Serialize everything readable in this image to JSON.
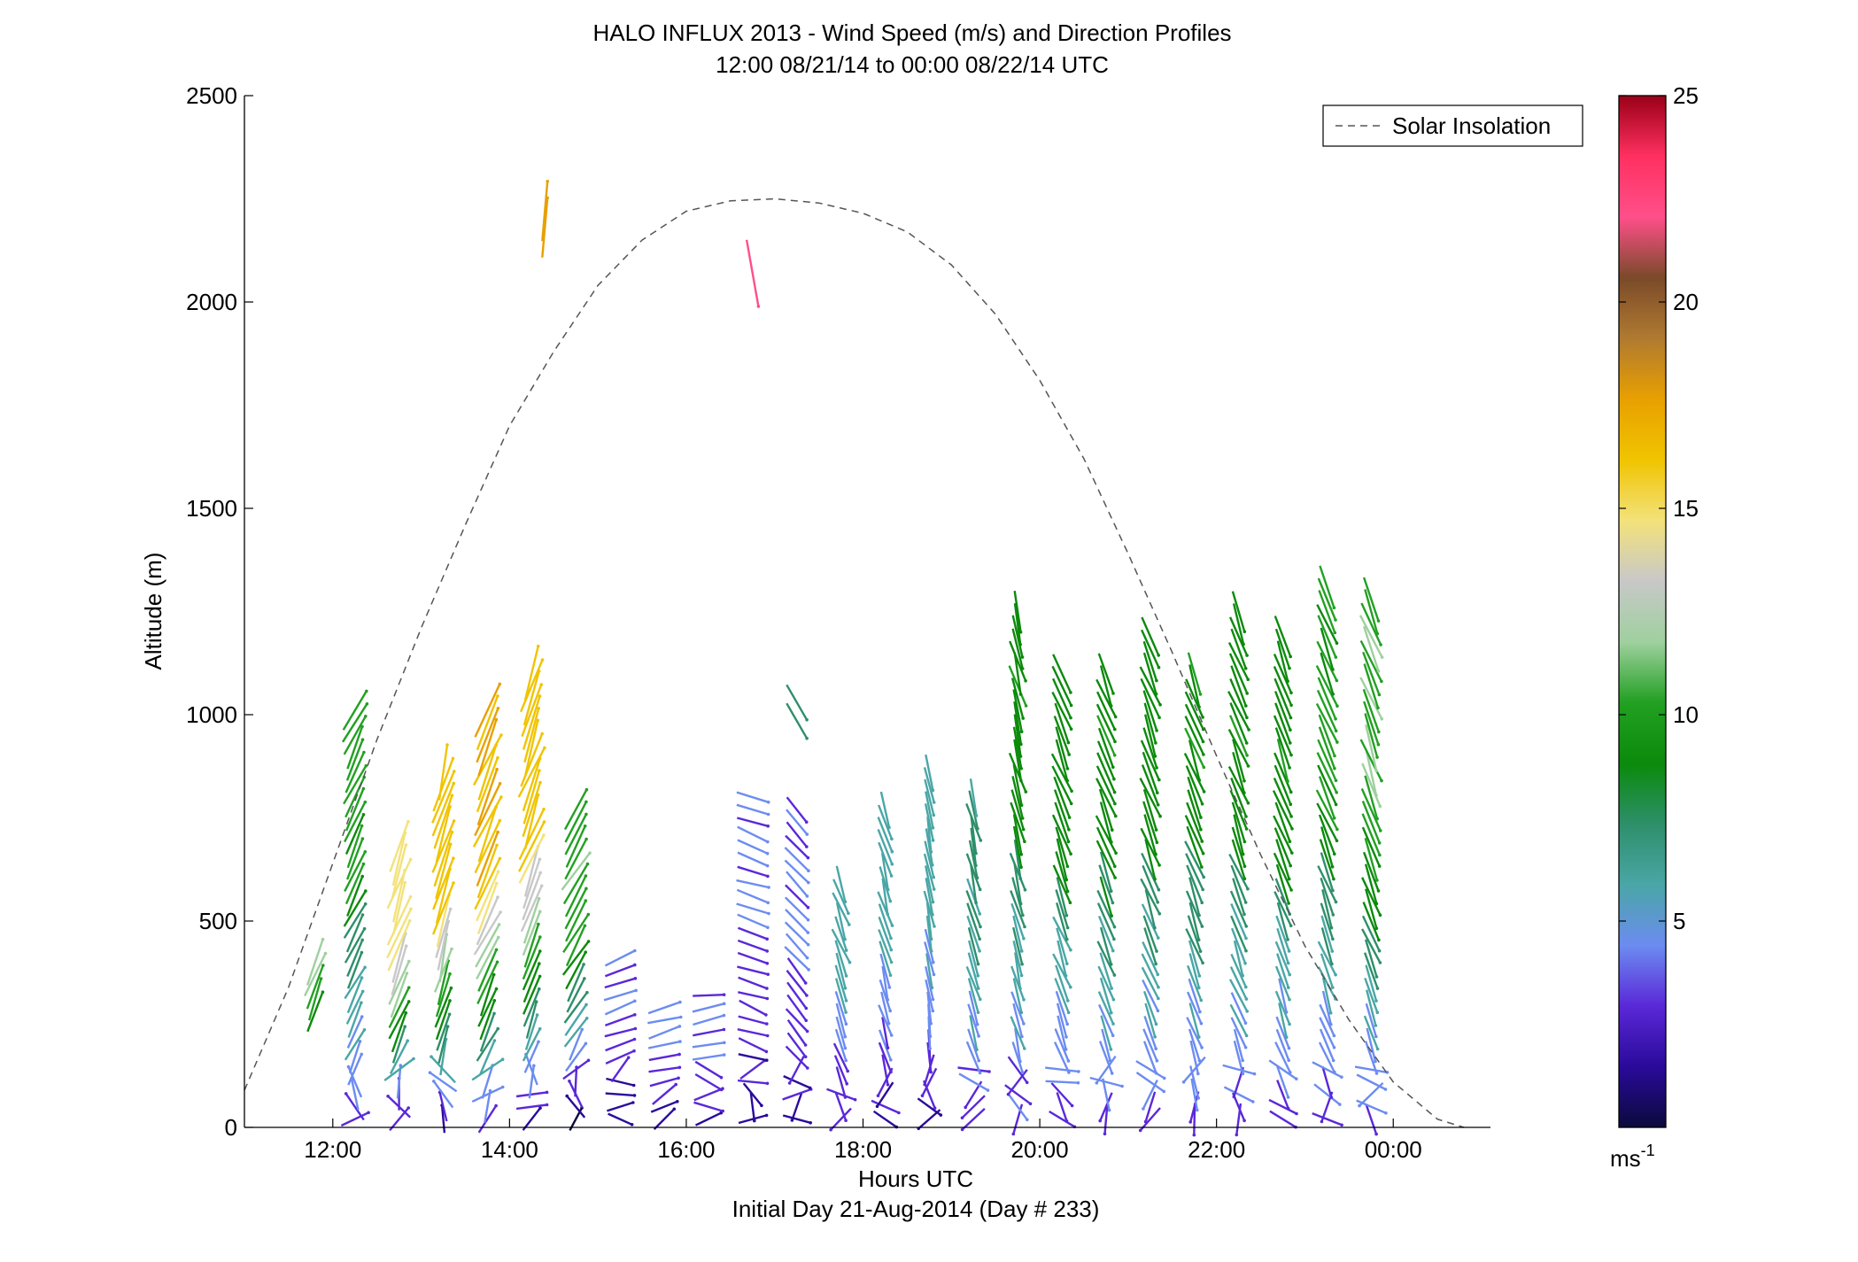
{
  "chart_data": {
    "type": "scatter",
    "title": "HALO INFLUX 2013 - Wind Speed (m/s) and Direction Profiles",
    "subtitle": "12:00 08/21/14 to 00:00 08/22/14  UTC",
    "xlabel": "Hours UTC",
    "footer": "Initial Day 21-Aug-2014 (Day # 233)",
    "ylabel": "Altitude (m)",
    "xlim": [
      11,
      25.1
    ],
    "ylim": [
      0,
      2500
    ],
    "x_ticks": [
      {
        "value": 12,
        "label": "12:00"
      },
      {
        "value": 14,
        "label": "14:00"
      },
      {
        "value": 16,
        "label": "16:00"
      },
      {
        "value": 18,
        "label": "18:00"
      },
      {
        "value": 20,
        "label": "20:00"
      },
      {
        "value": 22,
        "label": "22:00"
      },
      {
        "value": 24,
        "label": "00:00"
      }
    ],
    "y_ticks": [
      0,
      500,
      1000,
      1500,
      2000,
      2500
    ],
    "legend": {
      "position": "top-right",
      "entries": [
        {
          "label": "Solar Insolation",
          "style": "dashed",
          "color": "#555555"
        }
      ]
    },
    "colorbar": {
      "min": 0,
      "max": 25,
      "ticks": [
        5,
        10,
        15,
        20,
        25
      ],
      "unit_label": "ms",
      "unit_exponent": "-1",
      "colors": [
        "#0a0a3c",
        "#2a0a9a",
        "#5a28d8",
        "#6c8cf0",
        "#4aa6a6",
        "#2d8f6a",
        "#0b8a0b",
        "#22a022",
        "#9fd09f",
        "#c8c8c8",
        "#f3e27a",
        "#f0c400",
        "#e8a000",
        "#b07a30",
        "#7a4a2a",
        "#ff4f8a",
        "#ff3060",
        "#9a0018"
      ]
    },
    "solar_insolation": {
      "x": [
        11.0,
        11.5,
        12.0,
        12.5,
        13.0,
        13.5,
        14.0,
        14.5,
        15.0,
        15.5,
        16.0,
        16.5,
        17.0,
        17.5,
        18.0,
        18.5,
        19.0,
        19.5,
        20.0,
        20.5,
        21.0,
        21.5,
        22.0,
        22.5,
        23.0,
        23.5,
        24.0,
        24.5,
        24.8
      ],
      "y": [
        90,
        340,
        640,
        940,
        1210,
        1460,
        1700,
        1880,
        2040,
        2150,
        2220,
        2245,
        2250,
        2240,
        2215,
        2170,
        2090,
        1970,
        1810,
        1620,
        1390,
        1150,
        900,
        660,
        440,
        260,
        110,
        20,
        0
      ]
    },
    "wind_profiles": {
      "columns": [
        {
          "time": 11.8,
          "top": 420,
          "bottom": 280,
          "speed_low": 9,
          "speed_high": 12,
          "dir": 20
        },
        {
          "time": 12.25,
          "top": 1010,
          "bottom": 20,
          "speed_low": 3,
          "speed_high": 10,
          "dir": 25
        },
        {
          "time": 12.75,
          "top": 700,
          "bottom": 20,
          "speed_low": 2,
          "speed_high": 15,
          "dir": 20
        },
        {
          "time": 13.25,
          "top": 860,
          "bottom": 20,
          "speed_low": 2,
          "speed_high": 16,
          "dir": 15
        },
        {
          "time": 13.75,
          "top": 1020,
          "bottom": 20,
          "speed_low": 3,
          "speed_high": 17,
          "dir": 25
        },
        {
          "time": 14.25,
          "top": 1110,
          "bottom": 20,
          "speed_low": 2,
          "speed_high": 16,
          "dir": 20
        },
        {
          "time": 14.75,
          "top": 790,
          "bottom": 20,
          "speed_low": 1,
          "speed_high": 11,
          "dir": 30
        },
        {
          "time": 15.25,
          "top": 420,
          "bottom": 20,
          "speed_low": 1,
          "speed_high": 4,
          "dir": 70
        },
        {
          "time": 15.75,
          "top": 300,
          "bottom": 20,
          "speed_low": 2,
          "speed_high": 4,
          "dir": 75
        },
        {
          "time": 16.25,
          "top": 320,
          "bottom": 20,
          "speed_low": 2,
          "speed_high": 4,
          "dir": 80
        },
        {
          "time": 16.75,
          "top": 820,
          "bottom": 20,
          "speed_low": 2,
          "speed_high": 4,
          "dir": 110
        },
        {
          "time": 17.25,
          "top": 780,
          "bottom": 20,
          "speed_low": 2,
          "speed_high": 4,
          "dir": 140
        },
        {
          "time": 17.75,
          "top": 590,
          "bottom": 20,
          "speed_low": 2,
          "speed_high": 6,
          "dir": 160
        },
        {
          "time": 18.25,
          "top": 780,
          "bottom": 20,
          "speed_low": 2,
          "speed_high": 6,
          "dir": 165
        },
        {
          "time": 18.75,
          "top": 860,
          "bottom": 20,
          "speed_low": 2,
          "speed_high": 6,
          "dir": 170
        },
        {
          "time": 19.25,
          "top": 800,
          "bottom": 20,
          "speed_low": 3,
          "speed_high": 7,
          "dir": 165
        },
        {
          "time": 19.75,
          "top": 1250,
          "bottom": 20,
          "speed_low": 3,
          "speed_high": 9,
          "dir": 165
        },
        {
          "time": 20.25,
          "top": 1120,
          "bottom": 20,
          "speed_low": 3,
          "speed_high": 9,
          "dir": 160
        },
        {
          "time": 20.75,
          "top": 1120,
          "bottom": 20,
          "speed_low": 3,
          "speed_high": 9,
          "dir": 160
        },
        {
          "time": 21.25,
          "top": 1200,
          "bottom": 20,
          "speed_low": 3,
          "speed_high": 9,
          "dir": 160
        },
        {
          "time": 21.75,
          "top": 1100,
          "bottom": 20,
          "speed_low": 3,
          "speed_high": 9,
          "dir": 160
        },
        {
          "time": 22.25,
          "top": 1250,
          "bottom": 20,
          "speed_low": 3,
          "speed_high": 9,
          "dir": 160
        },
        {
          "time": 22.75,
          "top": 1200,
          "bottom": 20,
          "speed_low": 3,
          "speed_high": 9,
          "dir": 160
        },
        {
          "time": 23.25,
          "top": 1330,
          "bottom": 20,
          "speed_low": 3,
          "speed_high": 10,
          "dir": 160
        },
        {
          "time": 23.75,
          "top": 1300,
          "bottom": 20,
          "speed_low": 3,
          "speed_high": 11,
          "dir": 160
        }
      ],
      "isolated": [
        {
          "time": 14.4,
          "alt": 2220,
          "speed": 18,
          "dir": 5
        },
        {
          "time": 14.4,
          "alt": 2180,
          "speed": 18,
          "dir": 5
        },
        {
          "time": 16.75,
          "alt": 2070,
          "speed": 22,
          "dir": 170
        },
        {
          "time": 17.25,
          "alt": 1030,
          "speed": 8,
          "dir": 150
        },
        {
          "time": 17.25,
          "alt": 985,
          "speed": 8,
          "dir": 150
        }
      ]
    }
  }
}
